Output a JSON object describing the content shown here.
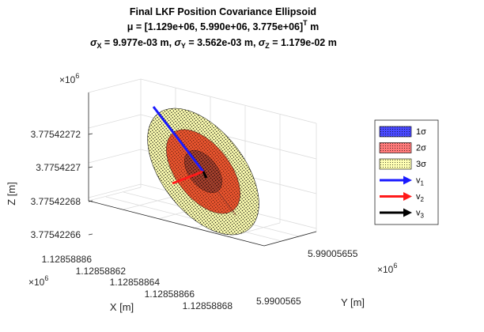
{
  "figure": {
    "title_line1": "Final LKF Position Covariance Ellipsoid",
    "mu_prefix": "μ = [1.129e+06, 5.990e+06, 3.775e+06]",
    "mu_sup": "T",
    "mu_unit": " m",
    "sigma_x_sub": "X",
    "sigma_x_val": " = 9.977e-03 m, ",
    "sigma_y_sub": "Y",
    "sigma_y_val": " = 3.562e-03 m, ",
    "sigma_z_sub": "Z",
    "sigma_z_val": " = 1.179e-02 m",
    "sigma_glyph": "σ"
  },
  "axes": {
    "x_label": "X [m]",
    "y_label": "Y [m]",
    "z_label": "Z [m]",
    "x_exponent": "×10",
    "x_exponent_power": "6",
    "y_exponent": "×10",
    "y_exponent_power": "6",
    "z_exponent": "×10",
    "z_exponent_power": "6",
    "x_ticks": [
      "1.12858886",
      "1.12858862",
      "1.12858864",
      "1.12858866",
      "1.12858868"
    ],
    "y_ticks": [
      "5.99005655",
      "5.9900565"
    ],
    "z_ticks": [
      "3.77542272",
      "3.7754227",
      "3.77542268",
      "3.77542266"
    ]
  },
  "chart_data": {
    "type": "scatter",
    "subtype": "3d-covariance-ellipsoid",
    "title": "Final LKF Position Covariance Ellipsoid",
    "mean_m": [
      1129000.0,
      5990000.0,
      3775000.0
    ],
    "sigma_m": {
      "X": 0.009977,
      "Y": 0.003562,
      "Z": 0.01179
    },
    "xlabel": "X [m]",
    "ylabel": "Y [m]",
    "zlabel": "Z [m]",
    "x_ticks": [
      1.12858886,
      1.12858862,
      1.12858864,
      1.12858866,
      1.12858868
    ],
    "y_ticks": [
      5.99005655,
      5.9900565
    ],
    "z_ticks": [
      3.77542272,
      3.7754227,
      3.77542268,
      3.77542266
    ],
    "tick_scale": "×10^6",
    "grid": true,
    "legend_position": "right",
    "series": [
      {
        "name": "1σ",
        "kind": "surface",
        "sigma_scale": 1,
        "color": "#4040ff"
      },
      {
        "name": "2σ",
        "kind": "surface",
        "sigma_scale": 2,
        "color": "#ff6b6b"
      },
      {
        "name": "3σ",
        "kind": "surface",
        "sigma_scale": 3,
        "color": "#ffffb0"
      },
      {
        "name": "v1",
        "kind": "eigenvector",
        "color": "#1a1aff"
      },
      {
        "name": "v2",
        "kind": "eigenvector",
        "color": "#ff1a1a"
      },
      {
        "name": "v3",
        "kind": "eigenvector",
        "color": "#000000"
      }
    ]
  },
  "legend": {
    "items": [
      {
        "text": "1σ",
        "sub": "",
        "swatch": "patch",
        "fill": "#4a4aff",
        "edge": "#000000"
      },
      {
        "text": "2σ",
        "sub": "",
        "swatch": "patch",
        "fill": "#ff7a7a",
        "edge": "#000000"
      },
      {
        "text": "3σ",
        "sub": "",
        "swatch": "patch",
        "fill": "#ffffb3",
        "edge": "#000000"
      },
      {
        "text": "v",
        "sub": "1",
        "swatch": "arrow",
        "fill": "#1a1aff",
        "edge": "#1a1aff"
      },
      {
        "text": "v",
        "sub": "2",
        "swatch": "arrow",
        "fill": "#ff1a1a",
        "edge": "#ff1a1a"
      },
      {
        "text": "v",
        "sub": "3",
        "swatch": "arrow",
        "fill": "#000000",
        "edge": "#000000"
      }
    ]
  }
}
